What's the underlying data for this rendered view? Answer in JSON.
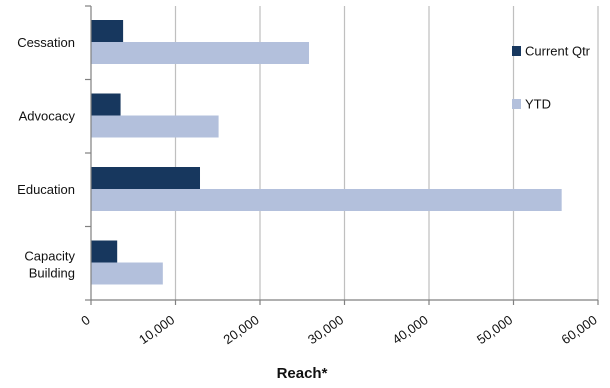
{
  "chart_data": {
    "type": "bar",
    "orientation": "horizontal",
    "categories": [
      "Cessation",
      "Advocacy",
      "Education",
      "Capacity Building"
    ],
    "series": [
      {
        "name": "Current Qtr",
        "color": "#17375e",
        "values": [
          3800,
          3500,
          12900,
          3100
        ]
      },
      {
        "name": "YTD",
        "color": "#b3c0dc",
        "values": [
          25800,
          15100,
          55700,
          8500
        ]
      }
    ],
    "xlabel": "Reach*",
    "ylabel": "",
    "xlim": [
      0,
      60000
    ],
    "xticks": [
      {
        "value": 0,
        "label": "0"
      },
      {
        "value": 10000,
        "label": "10,000"
      },
      {
        "value": 20000,
        "label": "20,000"
      },
      {
        "value": 30000,
        "label": "30,000"
      },
      {
        "value": 40000,
        "label": "40,000"
      },
      {
        "value": 50000,
        "label": "50,000"
      },
      {
        "value": 60000,
        "label": "60,000"
      }
    ],
    "grid": "vertical",
    "legend_position": "right"
  }
}
